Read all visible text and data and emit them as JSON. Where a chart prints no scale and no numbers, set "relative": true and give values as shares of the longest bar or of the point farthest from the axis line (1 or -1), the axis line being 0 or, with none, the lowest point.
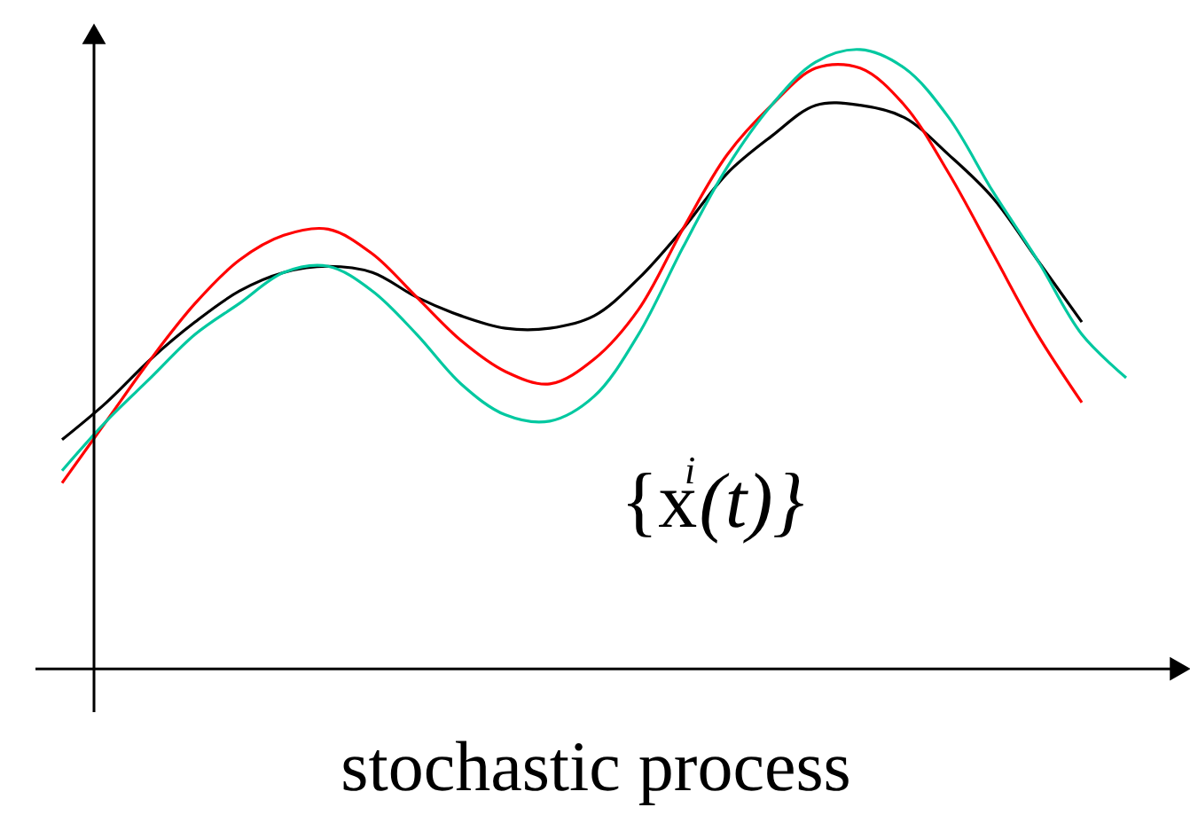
{
  "chart_data": {
    "type": "line",
    "relative": true,
    "xlabel": "stochastic process",
    "annotations": [
      "{x$^{i}$(t)}"
    ],
    "grid": false,
    "tick_labels": false,
    "categories": [
      null,
      null,
      null,
      null,
      null,
      null,
      null,
      null,
      null,
      null,
      null,
      null,
      null,
      null,
      null,
      null,
      null,
      null,
      null,
      null,
      null,
      null,
      null,
      null,
      null
    ],
    "series": [
      {
        "color": "#000000",
        "values": [
          0.37,
          0.43,
          0.5,
          0.56,
          0.61,
          0.64,
          0.65,
          0.64,
          0.6,
          0.57,
          0.55,
          0.55,
          0.57,
          0.63,
          0.71,
          0.8,
          0.86,
          0.91,
          0.91,
          0.89,
          0.83,
          0.76,
          0.66,
          0.56,
          null
        ]
      },
      {
        "color": "#ff0000",
        "values": [
          0.3,
          0.4,
          0.5,
          0.59,
          0.66,
          0.7,
          0.71,
          0.67,
          0.6,
          0.53,
          0.48,
          0.46,
          0.5,
          0.58,
          0.71,
          0.83,
          0.91,
          0.97,
          0.97,
          0.91,
          0.8,
          0.67,
          0.54,
          0.43,
          null
        ]
      },
      {
        "color": "#00c8a0",
        "values": [
          0.32,
          0.4,
          0.47,
          0.54,
          0.59,
          0.64,
          0.65,
          0.61,
          0.54,
          0.46,
          0.41,
          0.4,
          0.44,
          0.54,
          0.68,
          0.81,
          0.91,
          0.98,
          1,
          0.97,
          0.89,
          0.77,
          0.66,
          0.54,
          0.47
        ]
      }
    ]
  }
}
